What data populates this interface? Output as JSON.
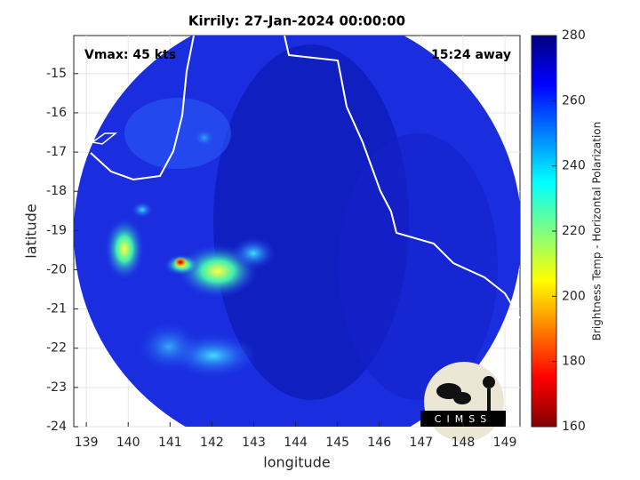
{
  "chart_data": {
    "type": "image-map",
    "title": "Kirrily: 27-Jan-2024 00:00:00",
    "x_label": "longitude",
    "y_label": "latitude",
    "annotations": [
      "Vmax: 45 kts",
      "15:24 away",
      "CIMSS"
    ],
    "xlim": [
      138.7,
      149.36
    ],
    "ylim": [
      -24,
      -14.03
    ],
    "xticks": [
      139,
      140,
      141,
      142,
      143,
      144,
      145,
      146,
      147,
      148,
      149
    ],
    "yticks": [
      -15,
      -16,
      -17,
      -18,
      -19,
      -20,
      -21,
      -22,
      -23,
      -24
    ],
    "grid": true,
    "colorbar": {
      "label": "Brightness Temp - Horizontal Polarization",
      "clim": [
        160,
        280
      ],
      "ticks": [
        160,
        180,
        200,
        220,
        240,
        260,
        280
      ],
      "colormap": "jet"
    }
  }
}
